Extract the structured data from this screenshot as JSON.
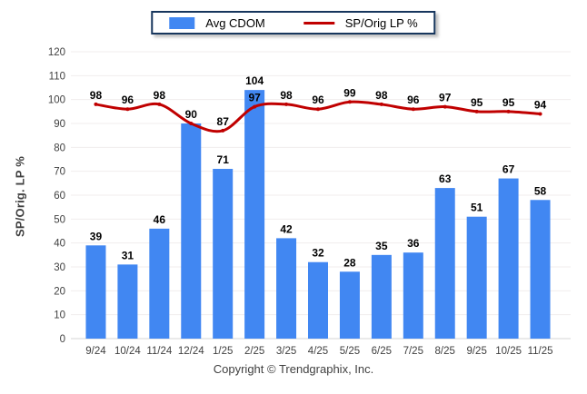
{
  "legend": {
    "items": [
      {
        "label": "Avg CDOM",
        "swatch": "bar"
      },
      {
        "label": "SP/Orig LP %",
        "swatch": "line"
      }
    ]
  },
  "footer": {
    "copyright": "Copyright © Trendgraphix, Inc."
  },
  "colors": {
    "bar": "#4187F2",
    "line": "#C00000",
    "grid": "#f0eded",
    "axis_line": "#d6d6d6",
    "tick_text": "#404040",
    "value_text": "#000000",
    "legend_border": "#17365D"
  },
  "chart_data": {
    "type": "bar",
    "subtype": "bar+line combo",
    "categories": [
      "9/24",
      "10/24",
      "11/24",
      "12/24",
      "1/25",
      "2/25",
      "3/25",
      "4/25",
      "5/25",
      "6/25",
      "7/25",
      "8/25",
      "9/25",
      "10/25",
      "11/25"
    ],
    "series": [
      {
        "name": "Avg CDOM",
        "type": "bar",
        "color": "#4187F2",
        "values": [
          39,
          31,
          46,
          90,
          71,
          104,
          42,
          32,
          28,
          35,
          36,
          63,
          51,
          67,
          58
        ]
      },
      {
        "name": "SP/Orig LP %",
        "type": "line",
        "color": "#C00000",
        "values": [
          98,
          96,
          98,
          90,
          87,
          97,
          98,
          96,
          99,
          98,
          96,
          97,
          95,
          95,
          94
        ]
      }
    ],
    "title": "",
    "xlabel": "",
    "ylabel": "SP/Orig. LP %",
    "ylim": [
      0,
      120
    ],
    "ytick_step": 10,
    "grid": true,
    "legend_position": "top-center",
    "data_labels": true
  }
}
